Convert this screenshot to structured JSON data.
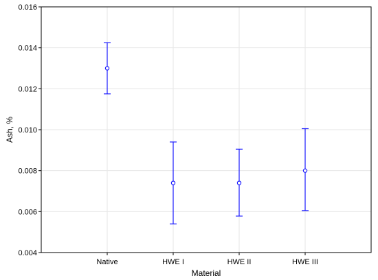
{
  "chart_data": {
    "type": "scatter",
    "title": "",
    "xlabel": "Material",
    "ylabel": "Ash, %",
    "categories": [
      "Native",
      "HWE I",
      "HWE II",
      "HWE III"
    ],
    "series": [
      {
        "values": [
          0.013,
          0.0074,
          0.0074,
          0.008
        ],
        "lower": [
          0.01175,
          0.0054,
          0.00578,
          0.00605
        ],
        "upper": [
          0.01425,
          0.0094,
          0.00905,
          0.01005
        ]
      }
    ],
    "ylim": [
      0.004,
      0.016
    ],
    "yticks": [
      "0.004",
      "0.006",
      "0.008",
      "0.010",
      "0.012",
      "0.014",
      "0.016"
    ],
    "grid": true,
    "color": "#1a1aff"
  }
}
